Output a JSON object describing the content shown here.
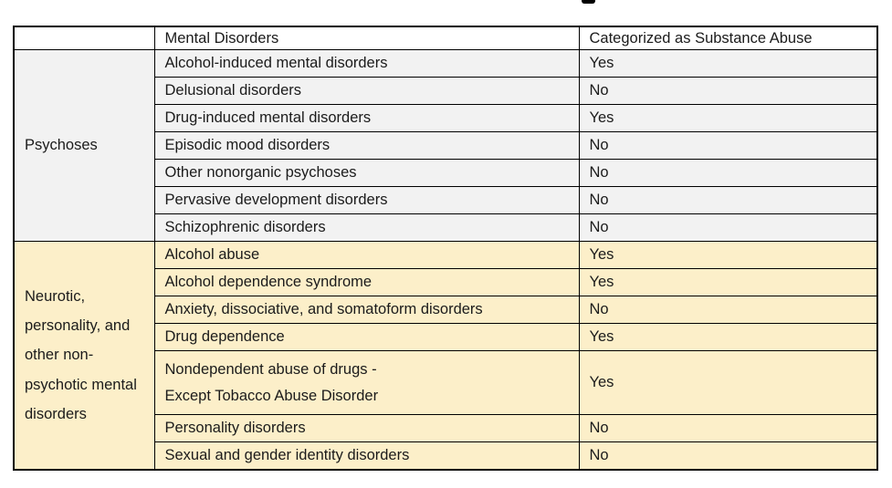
{
  "page": {
    "note": "static table screenshot with title cropped out of frame at top"
  },
  "colors": {
    "psychoses_bg": "#F2F2F2",
    "neurotic_bg": "#FCEFC9",
    "border": "#000000",
    "text": "#1B1B1B",
    "header_bg": "#FFFFFF"
  },
  "table": {
    "columns": [
      "",
      "Mental Disorders",
      "Categorized as Substance Abuse"
    ],
    "groups": [
      {
        "label": "Psychoses",
        "bg": "#F2F2F2",
        "rows": [
          {
            "disorder": "Alcohol-induced mental disorders",
            "substance_abuse": "Yes"
          },
          {
            "disorder": "Delusional disorders",
            "substance_abuse": "No"
          },
          {
            "disorder": "Drug-induced mental disorders",
            "substance_abuse": "Yes"
          },
          {
            "disorder": "Episodic mood disorders",
            "substance_abuse": "No"
          },
          {
            "disorder": "Other nonorganic psychoses",
            "substance_abuse": "No"
          },
          {
            "disorder": "Pervasive development disorders",
            "substance_abuse": "No"
          },
          {
            "disorder": "Schizophrenic disorders",
            "substance_abuse": "No"
          }
        ]
      },
      {
        "label": "Neurotic, personality, and other non-psychotic mental disorders",
        "bg": "#FCEFC9",
        "rows": [
          {
            "disorder": "Alcohol abuse",
            "substance_abuse": "Yes"
          },
          {
            "disorder": "Alcohol dependence syndrome",
            "substance_abuse": "Yes"
          },
          {
            "disorder": "Anxiety, dissociative, and somatoform disorders",
            "substance_abuse": "No"
          },
          {
            "disorder": "Drug dependence",
            "substance_abuse": "Yes"
          },
          {
            "disorder": "Nondependent abuse of drugs -\nExcept Tobacco Abuse Disorder",
            "substance_abuse": "Yes",
            "tall": true
          },
          {
            "disorder": "Personality disorders",
            "substance_abuse": "No"
          },
          {
            "disorder": "Sexual and gender identity disorders",
            "substance_abuse": "No"
          }
        ]
      }
    ]
  }
}
